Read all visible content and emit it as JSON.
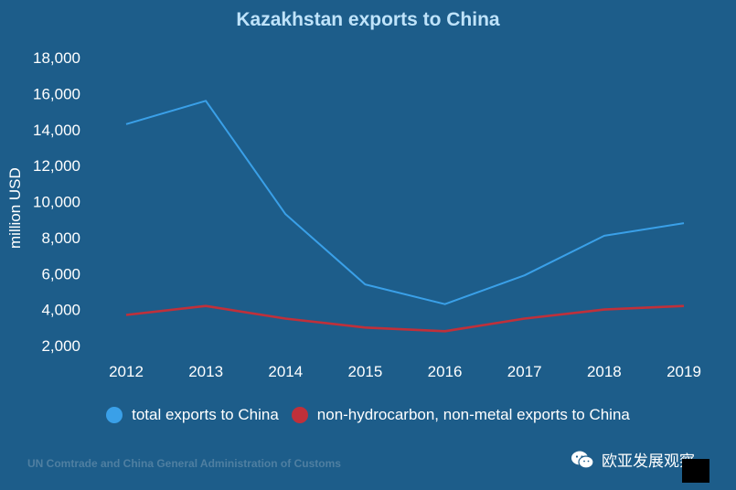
{
  "chart_data": {
    "type": "line",
    "title": "Kazakhstan exports to China",
    "ylabel": "million USD",
    "xlabel": "",
    "categories": [
      "2012",
      "2013",
      "2014",
      "2015",
      "2016",
      "2017",
      "2018",
      "2019"
    ],
    "y_ticks": [
      "2,000",
      "4,000",
      "6,000",
      "8,000",
      "10,000",
      "12,000",
      "14,000",
      "16,000",
      "18,000"
    ],
    "ylim": [
      2000,
      18000
    ],
    "grid": false,
    "legend_position": "bottom",
    "series": [
      {
        "name": "total exports to China",
        "color": "#3aa0e8",
        "values": [
          14300,
          15600,
          9300,
          5400,
          4300,
          5900,
          8100,
          8800
        ]
      },
      {
        "name": "non-hydrocarbon, non-metal exports to China",
        "color": "#c0303a",
        "values": [
          3700,
          4200,
          3500,
          3000,
          2800,
          3500,
          4000,
          4200
        ]
      }
    ]
  },
  "source": "UN Comtrade and China General Administration of Customs",
  "watermark": {
    "text": "欧亚发展观察",
    "icon": "wechat-icon"
  }
}
